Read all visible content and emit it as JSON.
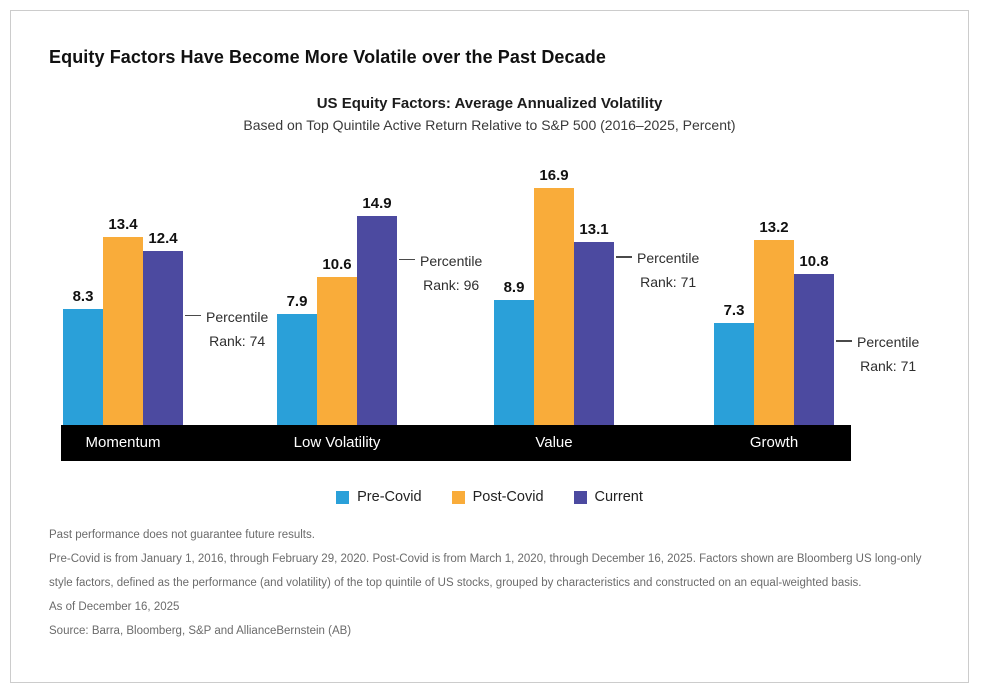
{
  "page": {
    "title": "Equity Factors Have Become More Volatile over the Past Decade"
  },
  "chart": {
    "title": "US Equity Factors: Average Annualized Volatility",
    "subtitle": "Based on Top Quintile Active Return Relative to S&P 500 (2016–2025, Percent)"
  },
  "chart_data": {
    "type": "bar",
    "categories": [
      "Momentum",
      "Low Volatility",
      "Value",
      "Growth"
    ],
    "series": [
      {
        "name": "Pre-Covid",
        "color": "#2AA0D9",
        "values": [
          8.3,
          7.9,
          8.9,
          7.3
        ]
      },
      {
        "name": "Post-Covid",
        "color": "#F9AC3A",
        "values": [
          13.4,
          10.6,
          16.9,
          13.2
        ]
      },
      {
        "name": "Current",
        "color": "#4C4AA0",
        "values": [
          12.4,
          14.9,
          13.1,
          10.8
        ]
      }
    ],
    "annotations": [
      {
        "category": "Momentum",
        "line1": "Percentile",
        "line2": "Rank: 74",
        "rank": 74
      },
      {
        "category": "Low Volatility",
        "line1": "Percentile",
        "line2": "Rank: 96",
        "rank": 96
      },
      {
        "category": "Value",
        "line1": "Percentile",
        "line2": "Rank: 71",
        "rank": 71
      },
      {
        "category": "Growth",
        "line1": "Percentile",
        "line2": "Rank: 71",
        "rank": 71
      }
    ],
    "ylim": [
      0,
      17
    ],
    "grid": false,
    "value_labels": true,
    "legend_position": "bottom"
  },
  "footnotes": [
    "Past performance does not guarantee future results.",
    "Pre-Covid is from January 1, 2016, through February 29, 2020. Post-Covid is from March 1, 2020, through December 16, 2025. Factors shown are Bloomberg US long-only style factors, defined as the performance (and volatility) of the top quintile of US stocks, grouped by characteristics and constructed on an equal-weighted basis.",
    "As of December 16, 2025",
    "Source: Barra, Bloomberg, S&P and AllianceBernstein (AB)"
  ]
}
